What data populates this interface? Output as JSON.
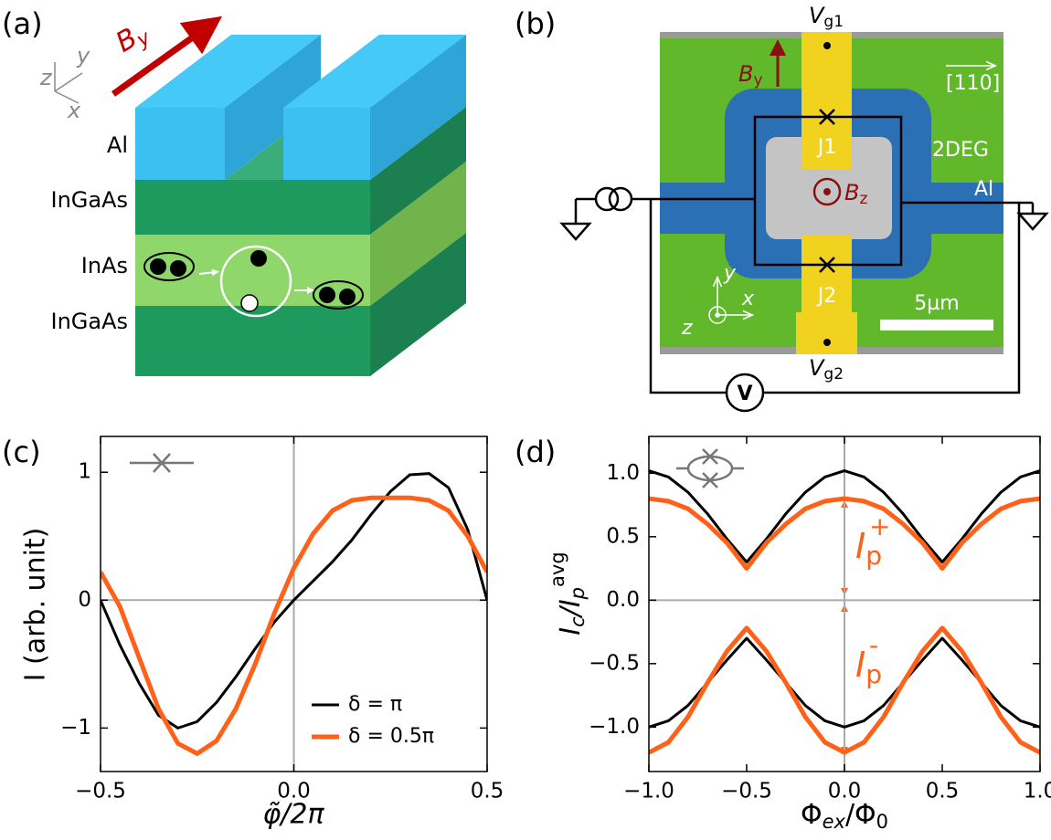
{
  "panel_labels": [
    "(a)",
    "(b)",
    "(c)",
    "(d)"
  ],
  "diagram_a": {
    "field": [
      "B",
      "y"
    ],
    "axes": [
      "z",
      "y",
      "x"
    ],
    "layers": [
      "Al",
      "InGaAs",
      "InAs",
      "InGaAs"
    ]
  },
  "diagram_b": {
    "gate_top": [
      "V",
      "g1"
    ],
    "field_y": [
      "B",
      "y"
    ],
    "direction": "[110]",
    "junction_1": "J1",
    "region_2deg": "2DEG",
    "field_z": [
      "B",
      "z"
    ],
    "region_al": "Al",
    "junction_2": "J2",
    "scale_bar": "5µm",
    "axes": [
      "y",
      "x",
      "z"
    ],
    "gate_bottom": [
      "V",
      "g2"
    ],
    "voltmeter": "V"
  },
  "chart_data": [
    {
      "type": "line",
      "x": [
        -0.5,
        -0.45,
        -0.4,
        -0.35,
        -0.3,
        -0.25,
        -0.2,
        -0.15,
        -0.1,
        -0.05,
        0,
        0.05,
        0.1,
        0.15,
        0.2,
        0.25,
        0.3,
        0.35,
        0.4,
        0.45,
        0.5
      ],
      "series": [
        {
          "name": "δ = π",
          "color": "#000000",
          "values": [
            0,
            -0.35,
            -0.65,
            -0.9,
            -1.0,
            -0.95,
            -0.8,
            -0.6,
            -0.38,
            -0.17,
            0,
            0.15,
            0.3,
            0.47,
            0.67,
            0.85,
            0.98,
            0.99,
            0.88,
            0.55,
            0
          ]
        },
        {
          "name": "δ = 0.5π",
          "color": "#ff6119",
          "values": [
            0.22,
            -0.05,
            -0.45,
            -0.85,
            -1.12,
            -1.2,
            -1.1,
            -0.85,
            -0.5,
            -0.1,
            0.25,
            0.52,
            0.7,
            0.78,
            0.8,
            0.8,
            0.8,
            0.78,
            0.7,
            0.5,
            0.22
          ]
        }
      ],
      "xlim": [
        -0.5,
        0.5
      ],
      "ylim": [
        -1.34,
        1.28
      ],
      "xticks": [
        {
          "value": -0.5,
          "label": "−0.5"
        },
        {
          "value": 0,
          "label": "0.0"
        },
        {
          "value": 0.5,
          "label": "0.5"
        }
      ],
      "yticks": [
        {
          "value": -1,
          "label": "−1"
        },
        0,
        1
      ],
      "xlabel": "φ̃/2π",
      "ylabel": "I (arb. unit)",
      "zero_lines": true,
      "legend": "lower right"
    },
    {
      "type": "line",
      "x": [
        -1.0,
        -0.9,
        -0.8,
        -0.7,
        -0.6,
        -0.5,
        -0.4,
        -0.3,
        -0.2,
        -0.1,
        0,
        0.1,
        0.2,
        0.3,
        0.4,
        0.5,
        0.6,
        0.7,
        0.8,
        0.9,
        1.0
      ],
      "series": [
        {
          "color": "#000000",
          "values": [
            1.02,
            0.97,
            0.85,
            0.68,
            0.48,
            0.3,
            0.48,
            0.68,
            0.85,
            0.97,
            1.02,
            0.97,
            0.85,
            0.68,
            0.48,
            0.3,
            0.48,
            0.68,
            0.85,
            0.97,
            1.02
          ]
        },
        {
          "color": "#ff6119",
          "values": [
            0.8,
            0.78,
            0.72,
            0.6,
            0.45,
            0.25,
            0.45,
            0.6,
            0.72,
            0.78,
            0.8,
            0.78,
            0.72,
            0.6,
            0.45,
            0.25,
            0.45,
            0.6,
            0.72,
            0.78,
            0.8
          ]
        },
        {
          "color": "#000000",
          "values": [
            -1.0,
            -0.95,
            -0.83,
            -0.65,
            -0.47,
            -0.3,
            -0.47,
            -0.65,
            -0.83,
            -0.95,
            -1.0,
            -0.95,
            -0.83,
            -0.65,
            -0.47,
            -0.3,
            -0.47,
            -0.65,
            -0.83,
            -0.95,
            -1.0
          ]
        },
        {
          "color": "#ff6119",
          "values": [
            -1.2,
            -1.12,
            -0.92,
            -0.65,
            -0.4,
            -0.22,
            -0.4,
            -0.65,
            -0.92,
            -1.12,
            -1.2,
            -1.12,
            -0.92,
            -0.65,
            -0.4,
            -0.22,
            -0.4,
            -0.65,
            -0.92,
            -1.12,
            -1.2
          ]
        }
      ],
      "xlim": [
        -1,
        1
      ],
      "ylim": [
        -1.35,
        1.29
      ],
      "xticks": [
        {
          "value": -1,
          "label": "−1.0"
        },
        {
          "value": -0.5,
          "label": "−0.5"
        },
        {
          "value": 0,
          "label": "0.0"
        },
        {
          "value": 0.5,
          "label": "0.5"
        },
        {
          "value": 1,
          "label": "1.0"
        }
      ],
      "yticks": [
        {
          "value": -1,
          "label": "−1.0"
        },
        {
          "value": -0.5,
          "label": "−0.5"
        },
        {
          "value": 0,
          "label": "0.0"
        },
        {
          "value": 0.5,
          "label": "0.5"
        },
        {
          "value": 1,
          "label": "1.0"
        }
      ],
      "xlabel": [
        "Φ",
        "ex",
        "/Φ",
        "0"
      ],
      "ylabel": [
        "I",
        "c",
        "/I",
        "p",
        "avg"
      ],
      "annotations": [
        [
          "I",
          "p",
          "+"
        ],
        [
          "I",
          "p",
          "-"
        ]
      ],
      "zero_lines": true
    }
  ]
}
